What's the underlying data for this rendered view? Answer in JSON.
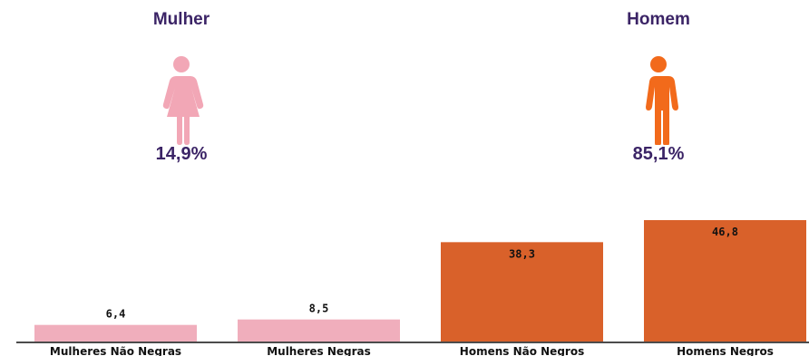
{
  "summary": {
    "female": {
      "title": "Mulher",
      "percent": "14,9%",
      "icon": "woman-icon",
      "color": "#f2a7b6"
    },
    "male": {
      "title": "Homem",
      "percent": "85,1%",
      "icon": "man-icon",
      "color": "#f26a1b"
    }
  },
  "chart_data": {
    "type": "bar",
    "categories": [
      "Mulheres Não Negras",
      "Mulheres Negras",
      "Homens Não Negros",
      "Homens Negros"
    ],
    "values": [
      6.4,
      8.5,
      38.3,
      46.8
    ],
    "value_labels": [
      "6,4",
      "8,5",
      "38,3",
      "46,8"
    ],
    "colors": [
      "#f0aebc",
      "#f0aebc",
      "#d9612a",
      "#d9612a"
    ],
    "title": "",
    "xlabel": "",
    "ylabel": "",
    "ylim": [
      0,
      50
    ],
    "grid": false,
    "legend": "none"
  }
}
